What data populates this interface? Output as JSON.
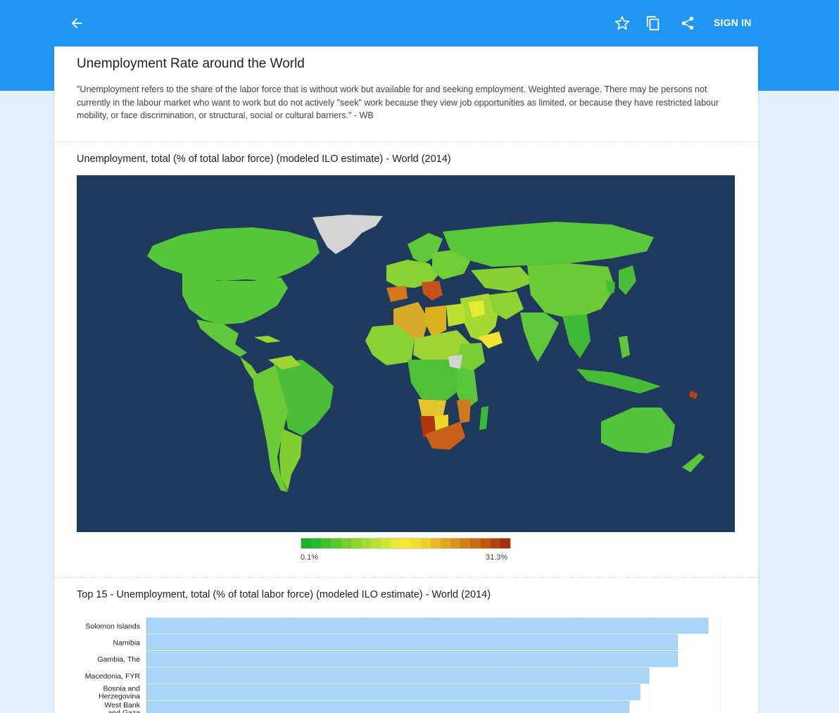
{
  "app": {
    "sign_in_label": "SIGN IN",
    "icons": [
      "back-arrow-icon",
      "star-icon",
      "copy-icon",
      "share-icon"
    ],
    "colors": {
      "appbar": "#2196f3",
      "background": "#e3f0fb",
      "map_ocean": "#203a5e",
      "bar": "#a9d5f7"
    }
  },
  "page": {
    "title": "Unemployment Rate around the World",
    "description": "\"Unemployment refers to the share of the labor force that is without work but available for and seeking employment. Weighted average. There may be persons not currently in the labour market who want to work but do not actively \"seek\" work because they view job opportunities as limited, or because they have restricted labour mobility, or face discrimination, or structural, social or cultural barriers.\" - WB"
  },
  "map_section": {
    "title": "Unemployment, total (% of total labor force) (modeled ILO estimate) - World (2014)",
    "legend_min": "0.1%",
    "legend_max": "31.3%",
    "legend_colors": [
      "#1aaf2c",
      "#2bb82e",
      "#42bf2f",
      "#5cc630",
      "#75cc31",
      "#8fd332",
      "#a6d933",
      "#bcdf33",
      "#d2e533",
      "#e7ea33",
      "#f5e92f",
      "#f4dc2c",
      "#eecc29",
      "#e8bb25",
      "#e0a820",
      "#d8951c",
      "#cf8118",
      "#c56d14",
      "#bb5910",
      "#b0440c",
      "#a52f08"
    ]
  },
  "chart_data": {
    "type": "bar",
    "title": "Top 15 - Unemployment, total (% of total labor force) (modeled ILO estimate) - World (2014)",
    "orientation": "horizontal",
    "categories": [
      "Solomon Islands",
      "Namibia",
      "Gambia, The",
      "Macedonia, FYR",
      "Bosnia and Herzegovina",
      "West Bank and Gaza"
    ],
    "values": [
      31.3,
      29.6,
      29.6,
      28.0,
      27.5,
      26.9
    ],
    "xlim": [
      0,
      32
    ]
  }
}
